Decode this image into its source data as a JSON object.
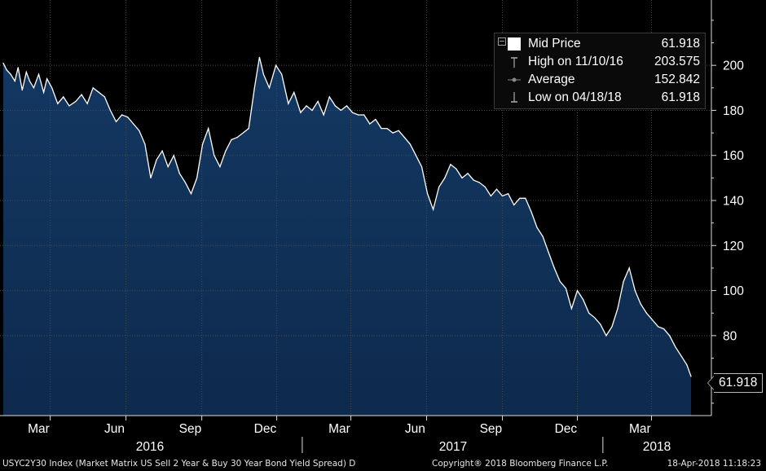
{
  "chart_data": {
    "type": "area",
    "title": "",
    "xlabel": "",
    "ylabel": "",
    "ylim": [
      44.5,
      229
    ],
    "grid": true,
    "legend_position": "top-right",
    "colors": {
      "area": "#0e2a4d",
      "line": "#ffffff",
      "background": "#000000",
      "grid": "#4a4a4a"
    },
    "x_ticks": [
      "Mar",
      "Jun",
      "Sep",
      "Dec",
      "Mar",
      "Jun",
      "Sep",
      "Dec",
      "Mar"
    ],
    "years": [
      "2016",
      "2017",
      "2018"
    ],
    "y_ticks": [
      200,
      180,
      160,
      140,
      120,
      100,
      80
    ],
    "series": [
      {
        "name": "Mid Price",
        "x": [
          "2016-01-04",
          "2016-01-08",
          "2016-01-13",
          "2016-01-18",
          "2016-01-22",
          "2016-01-27",
          "2016-02-01",
          "2016-02-05",
          "2016-02-10",
          "2016-02-16",
          "2016-02-22",
          "2016-02-26",
          "2016-03-03",
          "2016-03-10",
          "2016-03-17",
          "2016-03-24",
          "2016-04-01",
          "2016-04-08",
          "2016-04-15",
          "2016-04-22",
          "2016-04-29",
          "2016-05-06",
          "2016-05-13",
          "2016-05-20",
          "2016-05-27",
          "2016-06-03",
          "2016-06-10",
          "2016-06-17",
          "2016-06-24",
          "2016-07-01",
          "2016-07-08",
          "2016-07-15",
          "2016-07-22",
          "2016-07-29",
          "2016-08-05",
          "2016-08-12",
          "2016-08-19",
          "2016-08-26",
          "2016-09-02",
          "2016-09-09",
          "2016-09-16",
          "2016-09-23",
          "2016-09-30",
          "2016-10-07",
          "2016-10-14",
          "2016-10-21",
          "2016-10-28",
          "2016-11-04",
          "2016-11-10",
          "2016-11-15",
          "2016-11-22",
          "2016-11-30",
          "2016-12-07",
          "2016-12-15",
          "2016-12-22",
          "2016-12-30",
          "2017-01-06",
          "2017-01-13",
          "2017-01-20",
          "2017-01-27",
          "2017-02-03",
          "2017-02-10",
          "2017-02-17",
          "2017-02-24",
          "2017-03-03",
          "2017-03-10",
          "2017-03-17",
          "2017-03-24",
          "2017-03-31",
          "2017-04-07",
          "2017-04-14",
          "2017-04-21",
          "2017-04-28",
          "2017-05-05",
          "2017-05-12",
          "2017-05-19",
          "2017-05-26",
          "2017-06-02",
          "2017-06-09",
          "2017-06-16",
          "2017-06-23",
          "2017-06-30",
          "2017-07-07",
          "2017-07-14",
          "2017-07-21",
          "2017-07-28",
          "2017-08-04",
          "2017-08-11",
          "2017-08-18",
          "2017-08-25",
          "2017-09-01",
          "2017-09-08",
          "2017-09-15",
          "2017-09-22",
          "2017-09-29",
          "2017-10-06",
          "2017-10-13",
          "2017-10-20",
          "2017-10-27",
          "2017-11-03",
          "2017-11-10",
          "2017-11-17",
          "2017-11-24",
          "2017-12-01",
          "2017-12-08",
          "2017-12-15",
          "2017-12-22",
          "2017-12-29",
          "2018-01-05",
          "2018-01-12",
          "2018-01-19",
          "2018-01-26",
          "2018-02-02",
          "2018-02-09",
          "2018-02-16",
          "2018-02-23",
          "2018-03-02",
          "2018-03-09",
          "2018-03-16",
          "2018-03-23",
          "2018-03-30",
          "2018-04-06",
          "2018-04-13",
          "2018-04-18"
        ],
        "values": [
          201,
          198,
          196,
          193,
          199,
          189,
          197,
          193,
          190,
          196,
          188,
          194,
          190,
          183,
          186,
          182,
          184,
          187,
          183,
          190,
          188,
          186,
          180,
          175,
          178,
          177,
          174,
          171,
          165,
          150,
          158,
          162,
          155,
          160,
          152,
          148,
          143,
          150,
          165,
          172,
          160,
          155,
          162,
          167,
          168,
          170,
          172,
          190,
          203.575,
          196,
          190,
          200,
          196,
          183,
          188,
          179,
          182,
          180,
          184,
          178,
          186,
          182,
          180,
          182,
          179,
          178,
          178,
          174,
          176,
          172,
          172,
          170,
          171,
          168,
          165,
          160,
          155,
          143,
          136,
          146,
          150,
          156,
          154,
          150,
          152,
          149,
          148,
          146,
          142,
          145,
          142,
          143,
          138,
          141,
          141,
          135,
          128,
          124,
          117,
          110,
          104,
          101,
          92,
          100,
          96,
          90,
          88,
          85,
          80,
          84,
          92,
          104,
          110,
          100,
          94,
          90,
          87,
          84,
          83,
          80,
          75,
          71,
          67,
          61.918
        ]
      }
    ],
    "legend": [
      {
        "label": "Mid Price",
        "value": "61.918"
      },
      {
        "label": "High on 11/10/16",
        "value": "203.575"
      },
      {
        "label": "Average",
        "value": "152.842"
      },
      {
        "label": "Low on 04/18/18",
        "value": "61.918"
      }
    ],
    "last_value_label": "61.918"
  },
  "footer": {
    "ticker": "USYC2Y30 Index (Market Matrix US Sell 2 Year & Buy 30 Year Bond Yield Spread)  D",
    "copyright": "Copyright® 2018 Bloomberg Finance L.P.",
    "timestamp": "18-Apr-2018 11:18:23"
  }
}
